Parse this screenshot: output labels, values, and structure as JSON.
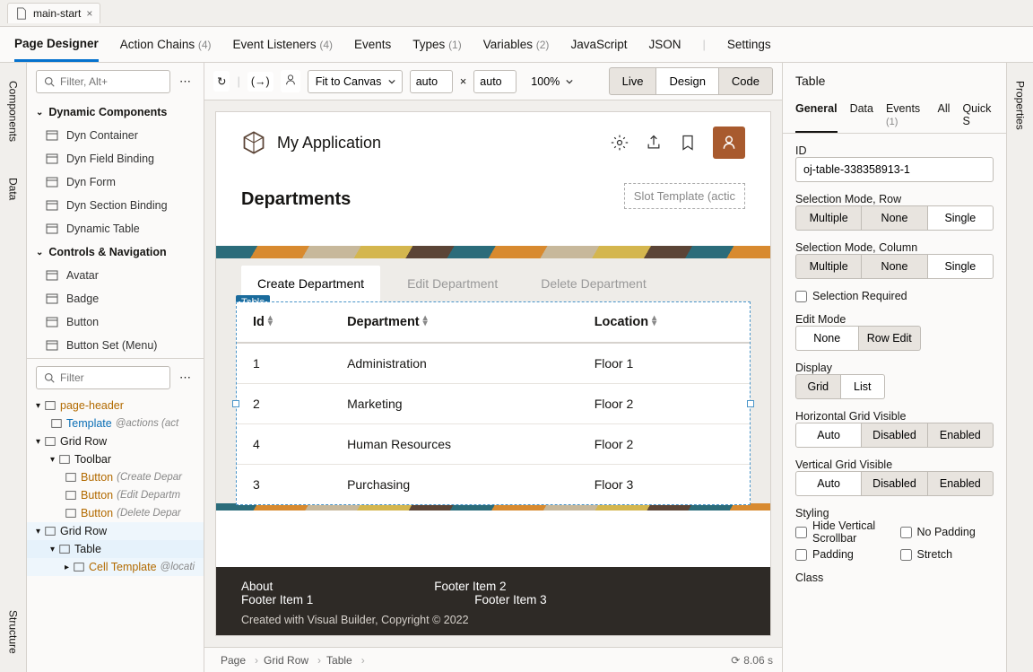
{
  "title_tab": "main-start",
  "nav": [
    {
      "label": "Page Designer",
      "count": "",
      "active": true
    },
    {
      "label": "Action Chains",
      "count": "(4)"
    },
    {
      "label": "Event Listeners",
      "count": "(4)"
    },
    {
      "label": "Events",
      "count": ""
    },
    {
      "label": "Types",
      "count": "(1)"
    },
    {
      "label": "Variables",
      "count": "(2)"
    },
    {
      "label": "JavaScript",
      "count": ""
    },
    {
      "label": "JSON",
      "count": ""
    },
    {
      "label": "Settings",
      "count": ""
    }
  ],
  "left_rail": [
    "Components",
    "Data"
  ],
  "left_rail_bottom": "Structure",
  "right_rail": "Properties",
  "components": {
    "filter_placeholder": "Filter, Alt+",
    "section1": "Dynamic Components",
    "items1": [
      "Dyn Container",
      "Dyn Field Binding",
      "Dyn Form",
      "Dyn Section Binding",
      "Dynamic Table"
    ],
    "section2": "Controls & Navigation",
    "items2": [
      "Avatar",
      "Badge",
      "Button",
      "Button Set (Menu)"
    ]
  },
  "structure": {
    "filter_placeholder": "Filter",
    "nodes": [
      {
        "indent": 0,
        "chev": "▾",
        "name": "page-header",
        "cls": "name"
      },
      {
        "indent": 1,
        "name": "Template",
        "cls": "name2",
        "meta": " @actions (act"
      },
      {
        "indent": 0,
        "chev": "▾",
        "name": "Grid Row"
      },
      {
        "indent": 1,
        "chev": "▾",
        "name": "Toolbar"
      },
      {
        "indent": 2,
        "name": "Button",
        "cls": "name",
        "meta": "  (Create Depar"
      },
      {
        "indent": 2,
        "name": "Button",
        "cls": "name",
        "meta": "  (Edit Departm"
      },
      {
        "indent": 2,
        "name": "Button",
        "cls": "name",
        "meta": "  (Delete Depar"
      },
      {
        "indent": 0,
        "chev": "▾",
        "name": "Grid Row",
        "selected": true
      },
      {
        "indent": 1,
        "chev": "▾",
        "name": "Table",
        "selected": true,
        "sel2": true
      },
      {
        "indent": 2,
        "chev": "▸",
        "name": "Cell Template",
        "cls": "name",
        "meta": "@locati",
        "selected": true
      }
    ]
  },
  "canvas_toolbar": {
    "fit": "Fit to Canvas",
    "w": "auto",
    "h": "auto",
    "zoom": "100%",
    "modes": [
      "Live",
      "Design",
      "Code"
    ],
    "active_mode": "Design"
  },
  "app": {
    "title": "My Application",
    "heading": "Departments",
    "slot": "Slot Template (actic",
    "tabs": [
      "Create Department",
      "Edit Department",
      "Delete Department"
    ],
    "selection_tag": "Table",
    "columns": [
      "Id",
      "Department",
      "Location"
    ],
    "rows": [
      [
        "1",
        "Administration",
        "Floor 1"
      ],
      [
        "2",
        "Marketing",
        "Floor 2"
      ],
      [
        "4",
        "Human Resources",
        "Floor 2"
      ],
      [
        "3",
        "Purchasing",
        "Floor 3"
      ]
    ],
    "footer_links": [
      [
        "About",
        "Footer Item 2"
      ],
      [
        "Footer Item 1",
        "Footer Item 3"
      ]
    ],
    "copyright": "Created with Visual Builder, Copyright © 2022"
  },
  "breadcrumb": [
    "Page",
    "Grid Row",
    "Table"
  ],
  "status_time": "8.06 s",
  "props": {
    "title": "Table",
    "tabs": [
      "General",
      "Data",
      "Events",
      "All",
      "Quick S"
    ],
    "events_count": "(1)",
    "id_label": "ID",
    "id_value": "oj-table-338358913-1",
    "sel_row_label": "Selection Mode, Row",
    "sel_col_label": "Selection Mode, Column",
    "sel_options": [
      "Multiple",
      "None",
      "Single"
    ],
    "sel_req": "Selection Required",
    "edit_label": "Edit Mode",
    "edit_options": [
      "None",
      "Row Edit"
    ],
    "display_label": "Display",
    "display_options": [
      "Grid",
      "List"
    ],
    "hgv_label": "Horizontal Grid Visible",
    "vgv_label": "Vertical Grid Visible",
    "grid_options": [
      "Auto",
      "Disabled",
      "Enabled"
    ],
    "styling_label": "Styling",
    "styling_opts": [
      "Hide Vertical Scrollbar",
      "No Padding",
      "Padding",
      "Stretch"
    ],
    "class_label": "Class"
  }
}
